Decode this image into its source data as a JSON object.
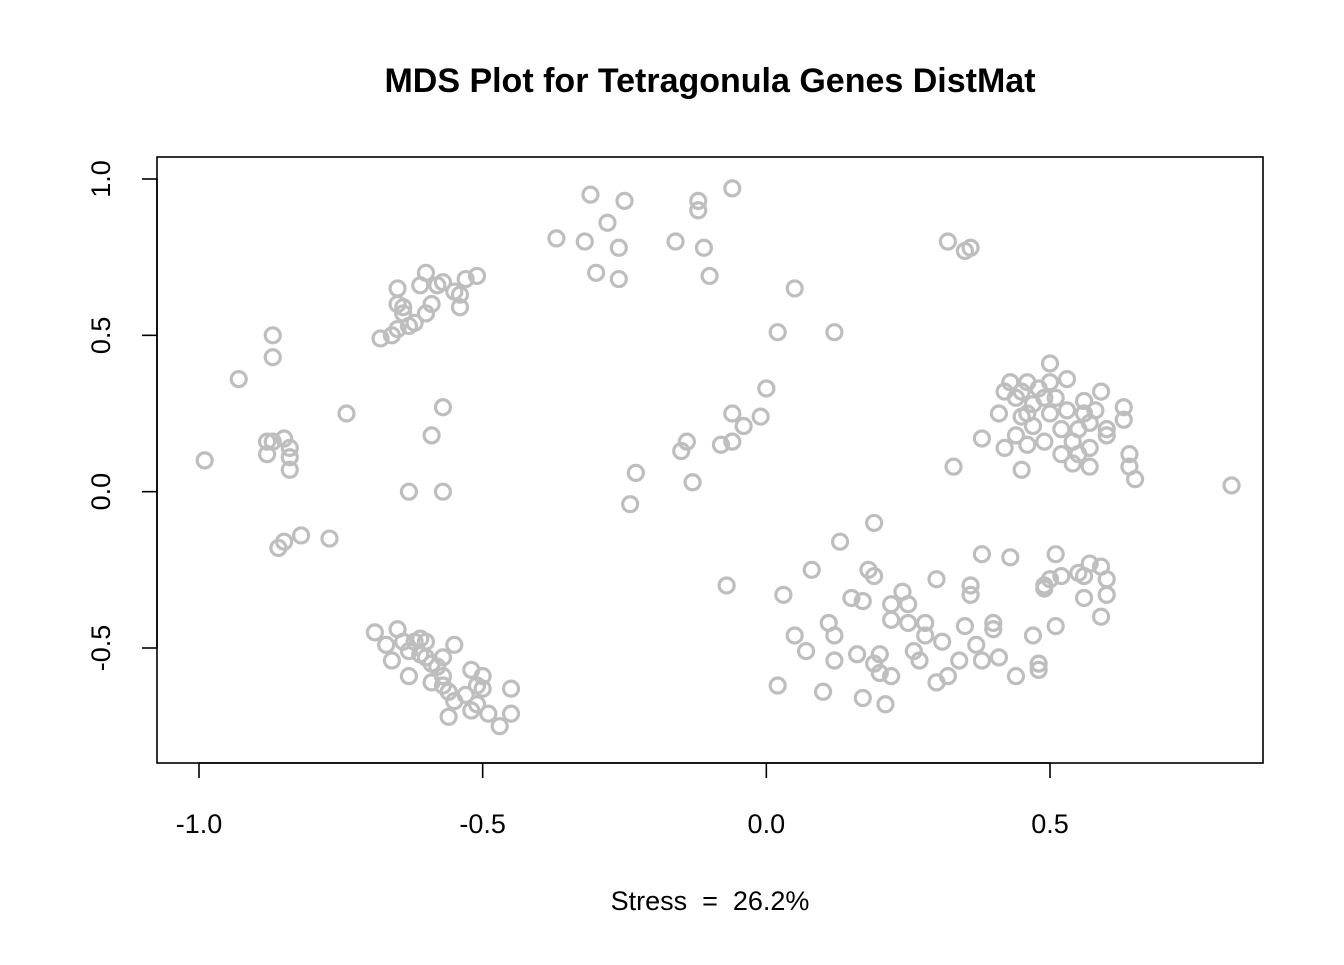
{
  "chart_data": {
    "type": "scatter",
    "title": "MDS Plot for Tetragonula Genes DistMat",
    "xlabel": "Stress  =  26.2%",
    "ylabel": "",
    "xlim": [
      -1.0,
      0.8
    ],
    "ylim": [
      -0.8,
      1.05
    ],
    "x_ticks": [
      -1.0,
      -0.5,
      0.0,
      0.5
    ],
    "x_tick_labels": [
      "-1.0",
      "-0.5",
      "0.0",
      "0.5"
    ],
    "y_ticks": [
      -0.5,
      0.0,
      0.5,
      1.0
    ],
    "y_tick_labels": [
      "-0.5",
      "0.0",
      "0.5",
      "1.0"
    ],
    "grid": false,
    "marker_color": "#bebebe",
    "points": [
      [
        -0.99,
        0.1
      ],
      [
        -0.93,
        0.36
      ],
      [
        -0.87,
        0.5
      ],
      [
        -0.87,
        0.43
      ],
      [
        -0.88,
        0.12
      ],
      [
        -0.88,
        0.16
      ],
      [
        -0.87,
        0.16
      ],
      [
        -0.85,
        0.17
      ],
      [
        -0.84,
        0.11
      ],
      [
        -0.84,
        0.14
      ],
      [
        -0.84,
        0.07
      ],
      [
        -0.86,
        -0.18
      ],
      [
        -0.85,
        -0.16
      ],
      [
        -0.82,
        -0.14
      ],
      [
        -0.77,
        -0.15
      ],
      [
        -0.74,
        0.25
      ],
      [
        -0.68,
        0.49
      ],
      [
        -0.66,
        0.5
      ],
      [
        -0.65,
        0.52
      ],
      [
        -0.65,
        0.6
      ],
      [
        -0.65,
        0.65
      ],
      [
        -0.64,
        0.57
      ],
      [
        -0.64,
        0.59
      ],
      [
        -0.63,
        0.53
      ],
      [
        -0.62,
        0.54
      ],
      [
        -0.61,
        0.66
      ],
      [
        -0.6,
        0.57
      ],
      [
        -0.6,
        0.7
      ],
      [
        -0.59,
        0.6
      ],
      [
        -0.58,
        0.66
      ],
      [
        -0.57,
        0.67
      ],
      [
        -0.55,
        0.64
      ],
      [
        -0.54,
        0.59
      ],
      [
        -0.54,
        0.63
      ],
      [
        -0.53,
        0.68
      ],
      [
        -0.51,
        0.69
      ],
      [
        -0.63,
        0.0
      ],
      [
        -0.57,
        0.0
      ],
      [
        -0.59,
        0.18
      ],
      [
        -0.57,
        0.27
      ],
      [
        -0.69,
        -0.45
      ],
      [
        -0.67,
        -0.49
      ],
      [
        -0.66,
        -0.54
      ],
      [
        -0.65,
        -0.44
      ],
      [
        -0.64,
        -0.48
      ],
      [
        -0.63,
        -0.51
      ],
      [
        -0.63,
        -0.59
      ],
      [
        -0.62,
        -0.48
      ],
      [
        -0.61,
        -0.47
      ],
      [
        -0.61,
        -0.52
      ],
      [
        -0.6,
        -0.48
      ],
      [
        -0.6,
        -0.53
      ],
      [
        -0.59,
        -0.55
      ],
      [
        -0.59,
        -0.61
      ],
      [
        -0.58,
        -0.56
      ],
      [
        -0.57,
        -0.53
      ],
      [
        -0.57,
        -0.59
      ],
      [
        -0.57,
        -0.62
      ],
      [
        -0.56,
        -0.64
      ],
      [
        -0.56,
        -0.72
      ],
      [
        -0.55,
        -0.67
      ],
      [
        -0.55,
        -0.49
      ],
      [
        -0.53,
        -0.65
      ],
      [
        -0.52,
        -0.57
      ],
      [
        -0.52,
        -0.7
      ],
      [
        -0.51,
        -0.62
      ],
      [
        -0.51,
        -0.68
      ],
      [
        -0.5,
        -0.59
      ],
      [
        -0.5,
        -0.63
      ],
      [
        -0.49,
        -0.71
      ],
      [
        -0.47,
        -0.75
      ],
      [
        -0.45,
        -0.63
      ],
      [
        -0.45,
        -0.71
      ],
      [
        -0.37,
        0.81
      ],
      [
        -0.32,
        0.8
      ],
      [
        -0.31,
        0.95
      ],
      [
        -0.3,
        0.7
      ],
      [
        -0.28,
        0.86
      ],
      [
        -0.26,
        0.78
      ],
      [
        -0.26,
        0.68
      ],
      [
        -0.25,
        0.93
      ],
      [
        -0.16,
        0.8
      ],
      [
        -0.12,
        0.93
      ],
      [
        -0.12,
        0.9
      ],
      [
        -0.11,
        0.78
      ],
      [
        -0.1,
        0.69
      ],
      [
        -0.06,
        0.97
      ],
      [
        -0.23,
        0.06
      ],
      [
        -0.24,
        -0.04
      ],
      [
        -0.15,
        0.13
      ],
      [
        -0.14,
        0.16
      ],
      [
        -0.13,
        0.03
      ],
      [
        -0.08,
        0.15
      ],
      [
        -0.06,
        0.16
      ],
      [
        -0.06,
        0.25
      ],
      [
        -0.04,
        0.21
      ],
      [
        -0.01,
        0.24
      ],
      [
        0.0,
        0.33
      ],
      [
        -0.07,
        -0.3
      ],
      [
        0.02,
        0.51
      ],
      [
        0.05,
        0.65
      ],
      [
        0.12,
        0.51
      ],
      [
        0.32,
        0.8
      ],
      [
        0.35,
        0.77
      ],
      [
        0.36,
        0.78
      ],
      [
        0.38,
        0.17
      ],
      [
        0.33,
        0.08
      ],
      [
        0.41,
        0.25
      ],
      [
        0.42,
        0.14
      ],
      [
        0.42,
        0.32
      ],
      [
        0.43,
        0.35
      ],
      [
        0.44,
        0.3
      ],
      [
        0.45,
        0.24
      ],
      [
        0.45,
        0.32
      ],
      [
        0.46,
        0.35
      ],
      [
        0.46,
        0.25
      ],
      [
        0.47,
        0.28
      ],
      [
        0.47,
        0.21
      ],
      [
        0.48,
        0.33
      ],
      [
        0.49,
        0.16
      ],
      [
        0.49,
        0.3
      ],
      [
        0.5,
        0.35
      ],
      [
        0.5,
        0.25
      ],
      [
        0.5,
        0.41
      ],
      [
        0.51,
        0.3
      ],
      [
        0.52,
        0.12
      ],
      [
        0.52,
        0.2
      ],
      [
        0.53,
        0.26
      ],
      [
        0.53,
        0.36
      ],
      [
        0.54,
        0.09
      ],
      [
        0.54,
        0.16
      ],
      [
        0.55,
        0.12
      ],
      [
        0.55,
        0.2
      ],
      [
        0.56,
        0.25
      ],
      [
        0.56,
        0.29
      ],
      [
        0.57,
        0.14
      ],
      [
        0.57,
        0.22
      ],
      [
        0.57,
        0.08
      ],
      [
        0.58,
        0.26
      ],
      [
        0.59,
        0.32
      ],
      [
        0.6,
        0.2
      ],
      [
        0.6,
        0.18
      ],
      [
        0.63,
        0.27
      ],
      [
        0.63,
        0.23
      ],
      [
        0.64,
        0.12
      ],
      [
        0.64,
        0.08
      ],
      [
        0.65,
        0.04
      ],
      [
        0.44,
        0.18
      ],
      [
        0.45,
        0.07
      ],
      [
        0.46,
        0.15
      ],
      [
        0.82,
        0.02
      ],
      [
        0.02,
        -0.62
      ],
      [
        0.03,
        -0.33
      ],
      [
        0.05,
        -0.46
      ],
      [
        0.07,
        -0.51
      ],
      [
        0.08,
        -0.25
      ],
      [
        0.1,
        -0.64
      ],
      [
        0.11,
        -0.42
      ],
      [
        0.12,
        -0.46
      ],
      [
        0.12,
        -0.54
      ],
      [
        0.13,
        -0.16
      ],
      [
        0.15,
        -0.34
      ],
      [
        0.16,
        -0.52
      ],
      [
        0.17,
        -0.35
      ],
      [
        0.17,
        -0.66
      ],
      [
        0.18,
        -0.25
      ],
      [
        0.19,
        -0.1
      ],
      [
        0.19,
        -0.27
      ],
      [
        0.19,
        -0.55
      ],
      [
        0.2,
        -0.52
      ],
      [
        0.2,
        -0.58
      ],
      [
        0.21,
        -0.68
      ],
      [
        0.22,
        -0.36
      ],
      [
        0.22,
        -0.41
      ],
      [
        0.22,
        -0.59
      ],
      [
        0.24,
        -0.32
      ],
      [
        0.25,
        -0.36
      ],
      [
        0.25,
        -0.42
      ],
      [
        0.26,
        -0.51
      ],
      [
        0.27,
        -0.54
      ],
      [
        0.28,
        -0.46
      ],
      [
        0.28,
        -0.42
      ],
      [
        0.3,
        -0.28
      ],
      [
        0.3,
        -0.61
      ],
      [
        0.31,
        -0.48
      ],
      [
        0.32,
        -0.59
      ],
      [
        0.34,
        -0.54
      ],
      [
        0.35,
        -0.43
      ],
      [
        0.36,
        -0.3
      ],
      [
        0.36,
        -0.33
      ],
      [
        0.37,
        -0.49
      ],
      [
        0.38,
        -0.2
      ],
      [
        0.38,
        -0.54
      ],
      [
        0.4,
        -0.42
      ],
      [
        0.4,
        -0.44
      ],
      [
        0.41,
        -0.53
      ],
      [
        0.43,
        -0.21
      ],
      [
        0.44,
        -0.59
      ],
      [
        0.47,
        -0.46
      ],
      [
        0.48,
        -0.55
      ],
      [
        0.48,
        -0.57
      ],
      [
        0.49,
        -0.31
      ],
      [
        0.49,
        -0.3
      ],
      [
        0.5,
        -0.28
      ],
      [
        0.51,
        -0.2
      ],
      [
        0.51,
        -0.43
      ],
      [
        0.52,
        -0.27
      ],
      [
        0.55,
        -0.26
      ],
      [
        0.56,
        -0.27
      ],
      [
        0.56,
        -0.34
      ],
      [
        0.57,
        -0.23
      ],
      [
        0.59,
        -0.4
      ],
      [
        0.59,
        -0.24
      ],
      [
        0.6,
        -0.28
      ],
      [
        0.6,
        -0.33
      ]
    ]
  }
}
